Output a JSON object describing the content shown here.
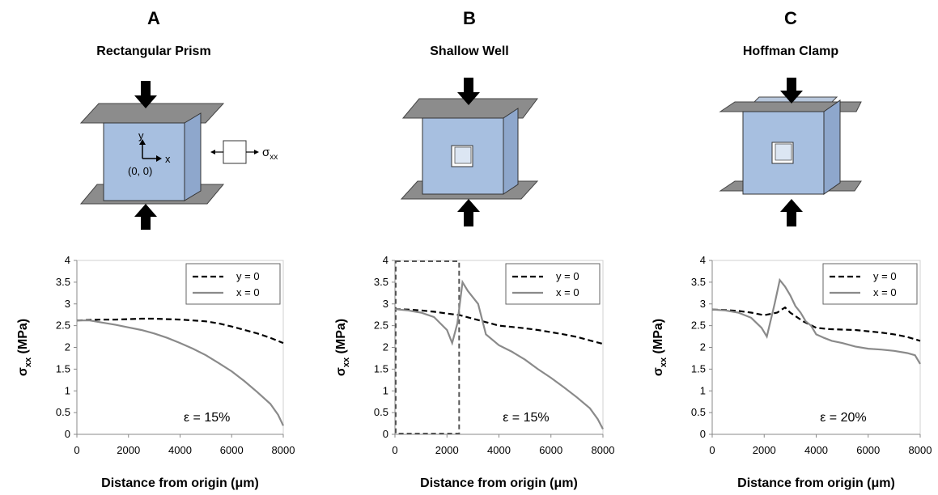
{
  "panels": [
    {
      "letter": "A",
      "title": "Rectangular Prism"
    },
    {
      "letter": "B",
      "title": "Shallow Well"
    },
    {
      "letter": "C",
      "title": "Hoffman Clamp"
    }
  ],
  "diagram": {
    "axis_y": "y",
    "axis_x": "x",
    "origin": "(0, 0)",
    "stress_symbol": "σ",
    "stress_sub": "xx"
  },
  "colors": {
    "block_face": "#a7bfe0",
    "block_side": "#8ea7cc",
    "plate": "#8c8c8c",
    "dashed_series": "#000000",
    "solid_series": "#8a8a8a",
    "inset_box": "#555555"
  },
  "chart_data": [
    {
      "type": "line",
      "xlabel": "Distance from origin (μm)",
      "ylabel_main": "σ",
      "ylabel_sub": "xx",
      "ylabel_unit": " (MPa)",
      "xlim": [
        0,
        8000
      ],
      "ylim": [
        0,
        4
      ],
      "xticks": [
        "0",
        "2000",
        "4000",
        "6000",
        "8000"
      ],
      "yticks": [
        "0",
        "0.5",
        "1",
        "1.5",
        "2",
        "2.5",
        "3",
        "3.5",
        "4"
      ],
      "grid": false,
      "legend_position": "top-right",
      "annotation": "ε = 15%",
      "series": [
        {
          "name": "y = 0",
          "style": "dashed",
          "points": [
            [
              0,
              2.62
            ],
            [
              500,
              2.63
            ],
            [
              1000,
              2.64
            ],
            [
              1500,
              2.64
            ],
            [
              2000,
              2.65
            ],
            [
              2500,
              2.66
            ],
            [
              3000,
              2.66
            ],
            [
              3500,
              2.65
            ],
            [
              4000,
              2.64
            ],
            [
              4500,
              2.62
            ],
            [
              5000,
              2.6
            ],
            [
              5500,
              2.55
            ],
            [
              6000,
              2.48
            ],
            [
              6500,
              2.4
            ],
            [
              7000,
              2.32
            ],
            [
              7500,
              2.22
            ],
            [
              8000,
              2.1
            ]
          ]
        },
        {
          "name": "x = 0",
          "style": "solid",
          "points": [
            [
              0,
              2.62
            ],
            [
              500,
              2.62
            ],
            [
              1000,
              2.57
            ],
            [
              1500,
              2.52
            ],
            [
              2000,
              2.46
            ],
            [
              2500,
              2.4
            ],
            [
              3000,
              2.32
            ],
            [
              3500,
              2.22
            ],
            [
              4000,
              2.1
            ],
            [
              4500,
              1.97
            ],
            [
              5000,
              1.82
            ],
            [
              5500,
              1.64
            ],
            [
              6000,
              1.45
            ],
            [
              6500,
              1.22
            ],
            [
              7000,
              0.97
            ],
            [
              7500,
              0.7
            ],
            [
              7800,
              0.45
            ],
            [
              8000,
              0.2
            ]
          ]
        }
      ]
    },
    {
      "type": "line",
      "xlabel": "Distance from origin (μm)",
      "ylabel_main": "σ",
      "ylabel_sub": "xx",
      "ylabel_unit": " (MPa)",
      "xlim": [
        0,
        8000
      ],
      "ylim": [
        0,
        4
      ],
      "xticks": [
        "0",
        "2000",
        "4000",
        "6000",
        "8000"
      ],
      "yticks": [
        "0",
        "0.5",
        "1",
        "1.5",
        "2",
        "2.5",
        "3",
        "3.5",
        "4"
      ],
      "grid": false,
      "legend_position": "top-right",
      "annotation": "ε = 15%",
      "inset_box": {
        "x": [
          0,
          2500
        ],
        "y": [
          0,
          4
        ]
      },
      "series": [
        {
          "name": "y = 0",
          "style": "dashed",
          "points": [
            [
              0,
              2.88
            ],
            [
              500,
              2.87
            ],
            [
              1000,
              2.85
            ],
            [
              1500,
              2.82
            ],
            [
              2000,
              2.78
            ],
            [
              2500,
              2.74
            ],
            [
              3000,
              2.66
            ],
            [
              3500,
              2.58
            ],
            [
              4000,
              2.5
            ],
            [
              4500,
              2.47
            ],
            [
              5000,
              2.44
            ],
            [
              5500,
              2.4
            ],
            [
              6000,
              2.35
            ],
            [
              6500,
              2.3
            ],
            [
              7000,
              2.24
            ],
            [
              7500,
              2.16
            ],
            [
              8000,
              2.08
            ]
          ]
        },
        {
          "name": "x = 0",
          "style": "solid",
          "points": [
            [
              0,
              2.88
            ],
            [
              500,
              2.85
            ],
            [
              1000,
              2.8
            ],
            [
              1500,
              2.7
            ],
            [
              2000,
              2.4
            ],
            [
              2200,
              2.1
            ],
            [
              2400,
              2.55
            ],
            [
              2600,
              3.5
            ],
            [
              2800,
              3.3
            ],
            [
              3000,
              3.15
            ],
            [
              3200,
              3.0
            ],
            [
              3500,
              2.3
            ],
            [
              4000,
              2.05
            ],
            [
              4500,
              1.9
            ],
            [
              5000,
              1.72
            ],
            [
              5500,
              1.5
            ],
            [
              6000,
              1.3
            ],
            [
              6500,
              1.08
            ],
            [
              7000,
              0.85
            ],
            [
              7500,
              0.6
            ],
            [
              7800,
              0.35
            ],
            [
              8000,
              0.12
            ]
          ]
        }
      ]
    },
    {
      "type": "line",
      "xlabel": "Distance from origin (μm)",
      "ylabel_main": "σ",
      "ylabel_sub": "xx",
      "ylabel_unit": " (MPa)",
      "xlim": [
        0,
        8000
      ],
      "ylim": [
        0,
        4
      ],
      "xticks": [
        "0",
        "2000",
        "4000",
        "6000",
        "8000"
      ],
      "yticks": [
        "0",
        "0.5",
        "1",
        "1.5",
        "2",
        "2.5",
        "3",
        "3.5",
        "4"
      ],
      "grid": false,
      "legend_position": "top-right",
      "annotation": "ε = 20%",
      "series": [
        {
          "name": "y = 0",
          "style": "dashed",
          "points": [
            [
              0,
              2.87
            ],
            [
              500,
              2.86
            ],
            [
              1000,
              2.84
            ],
            [
              1500,
              2.8
            ],
            [
              2000,
              2.74
            ],
            [
              2500,
              2.8
            ],
            [
              2800,
              2.92
            ],
            [
              3000,
              2.8
            ],
            [
              3500,
              2.6
            ],
            [
              4000,
              2.45
            ],
            [
              4500,
              2.42
            ],
            [
              5000,
              2.41
            ],
            [
              5500,
              2.4
            ],
            [
              6000,
              2.37
            ],
            [
              6500,
              2.34
            ],
            [
              7000,
              2.3
            ],
            [
              7500,
              2.24
            ],
            [
              8000,
              2.15
            ]
          ]
        },
        {
          "name": "x = 0",
          "style": "solid",
          "points": [
            [
              0,
              2.87
            ],
            [
              500,
              2.85
            ],
            [
              1000,
              2.8
            ],
            [
              1500,
              2.68
            ],
            [
              1900,
              2.45
            ],
            [
              2100,
              2.25
            ],
            [
              2400,
              3.0
            ],
            [
              2600,
              3.55
            ],
            [
              2800,
              3.4
            ],
            [
              3000,
              3.2
            ],
            [
              3200,
              2.95
            ],
            [
              3400,
              2.8
            ],
            [
              3600,
              2.6
            ],
            [
              3800,
              2.5
            ],
            [
              4000,
              2.3
            ],
            [
              4300,
              2.22
            ],
            [
              4600,
              2.15
            ],
            [
              5000,
              2.1
            ],
            [
              5500,
              2.02
            ],
            [
              6000,
              1.97
            ],
            [
              6500,
              1.95
            ],
            [
              7000,
              1.92
            ],
            [
              7500,
              1.87
            ],
            [
              7800,
              1.82
            ],
            [
              8000,
              1.62
            ]
          ]
        }
      ]
    }
  ]
}
